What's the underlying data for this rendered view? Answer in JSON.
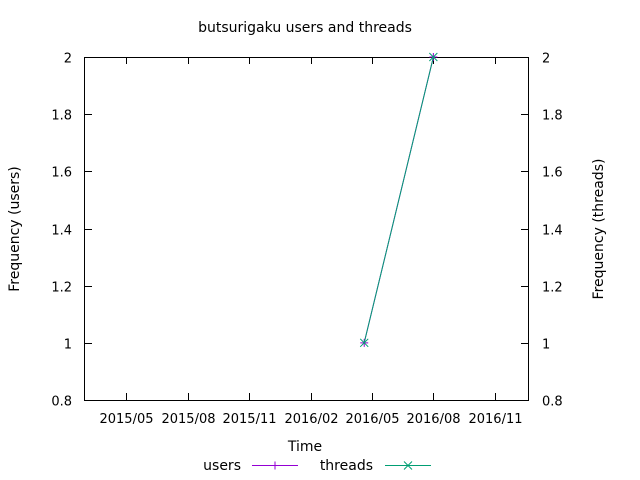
{
  "chart_data": {
    "type": "line",
    "title": "butsurigaku users and threads",
    "xlabel": "Time",
    "ylabel": "Frequency (users)",
    "y2label": "Frequency (threads)",
    "x_tick_labels": [
      "2015/05",
      "2015/08",
      "2015/11",
      "2016/02",
      "2016/05",
      "2016/08",
      "2016/11"
    ],
    "xlim": [
      "2015-03-01",
      "2016-12-20"
    ],
    "ylim": [
      0.8,
      2
    ],
    "y2lim": [
      0.8,
      2
    ],
    "y_ticks": [
      0.8,
      1,
      1.2,
      1.4,
      1.6,
      1.8,
      2
    ],
    "y_tick_labels": [
      "0.8",
      "1",
      "1.2",
      "1.4",
      "1.6",
      "1.8",
      "2"
    ],
    "y2_ticks": [
      0.8,
      1,
      1.2,
      1.4,
      1.6,
      1.8,
      2
    ],
    "y2_tick_labels": [
      "0.8",
      "1",
      "1.2",
      "1.4",
      "1.6",
      "1.8",
      "2"
    ],
    "grid": false,
    "legend_position": "bottom",
    "series": [
      {
        "name": "users",
        "color": "#9400d3",
        "marker": "plus",
        "axis": "left",
        "points": [
          {
            "x": "2016-04-20",
            "y": 1
          },
          {
            "x": "2016-08-01",
            "y": 2
          }
        ]
      },
      {
        "name": "threads",
        "color": "#009e73",
        "marker": "cross",
        "axis": "right",
        "points": [
          {
            "x": "2016-04-20",
            "y": 1
          },
          {
            "x": "2016-08-01",
            "y": 2
          }
        ]
      }
    ]
  }
}
